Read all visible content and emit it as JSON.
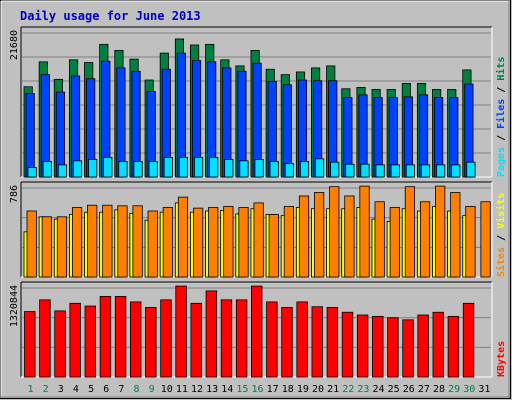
{
  "chart_data": {
    "type": "bar",
    "title": "Daily usage for June 2013",
    "categories": [
      "1",
      "2",
      "3",
      "4",
      "5",
      "6",
      "7",
      "8",
      "9",
      "10",
      "11",
      "12",
      "13",
      "14",
      "15",
      "16",
      "17",
      "18",
      "19",
      "20",
      "21",
      "22",
      "23",
      "24",
      "25",
      "26",
      "27",
      "28",
      "29",
      "30",
      "31"
    ],
    "weekend_days": [
      "1",
      "2",
      "8",
      "9",
      "15",
      "16",
      "22",
      "23",
      "29",
      "30"
    ],
    "colors": {
      "hits": "#008040",
      "files": "#0040ff",
      "pages": "#00e0ff",
      "visits": "#ffff00",
      "sites": "#ff8000",
      "kbytes": "#ff0000",
      "title": "#0000c0",
      "weekday_label": "#000000",
      "weekend_label": "#008040"
    },
    "panels": [
      {
        "id": "top",
        "axis_label": "21680",
        "ylim": [
          0,
          21680
        ],
        "legend": [
          "Pages",
          "Files",
          "Hits"
        ],
        "series": [
          {
            "name": "Hits",
            "values": [
              13400,
              17100,
              14500,
              17400,
              17000,
              19700,
              18800,
              17500,
              14400,
              18400,
              20500,
              19600,
              19700,
              17400,
              16500,
              18800,
              16000,
              15200,
              15600,
              16200,
              16500,
              13100,
              13300,
              13000,
              13000,
              13900,
              13900,
              13000,
              13000,
              15900,
              null
            ]
          },
          {
            "name": "Files",
            "values": [
              12400,
              15200,
              12600,
              15000,
              14600,
              17200,
              16200,
              15700,
              12700,
              16000,
              18400,
              17300,
              17100,
              16200,
              15700,
              16900,
              14200,
              13700,
              14400,
              14300,
              14300,
              11800,
              12200,
              11800,
              11800,
              11900,
              12200,
              11800,
              11800,
              13800,
              null
            ]
          },
          {
            "name": "Pages",
            "values": [
              1400,
              2300,
              1800,
              2400,
              2600,
              2900,
              2300,
              2300,
              2300,
              2900,
              2900,
              2900,
              2900,
              2600,
              2400,
              2600,
              2300,
              2000,
              2300,
              2700,
              2200,
              1900,
              1900,
              1800,
              1800,
              1800,
              1800,
              1800,
              1800,
              2200,
              null
            ]
          }
        ]
      },
      {
        "id": "middle",
        "axis_label": "786",
        "ylim": [
          0,
          786
        ],
        "legend": [
          "Sites",
          "Visits"
        ],
        "series": [
          {
            "name": "Sites",
            "values": [
              570,
              520,
              520,
              600,
              620,
              620,
              615,
              615,
              570,
              600,
              690,
              595,
              600,
              610,
              600,
              640,
              540,
              610,
              700,
              730,
              780,
              700,
              785,
              650,
              600,
              780,
              650,
              785,
              730,
              610,
              650
            ]
          },
          {
            "name": "Visits",
            "values": [
              390,
              520,
              500,
              540,
              560,
              560,
              580,
              550,
              490,
              560,
              640,
              560,
              570,
              575,
              545,
              590,
              540,
              530,
              600,
              590,
              590,
              590,
              600,
              500,
              480,
              590,
              570,
              610,
              570,
              530,
              null
            ]
          }
        ]
      },
      {
        "id": "bottom",
        "axis_label": "1320844",
        "ylim": [
          0,
          1320844
        ],
        "legend": [
          "KBytes"
        ],
        "series": [
          {
            "name": "KBytes",
            "values": [
              950000,
              1120000,
              960000,
              1070000,
              1030000,
              1170000,
              1170000,
              1090000,
              1010000,
              1120000,
              1320000,
              1070000,
              1250000,
              1120000,
              1120000,
              1320000,
              1090000,
              1010000,
              1090000,
              1020000,
              1010000,
              940000,
              900000,
              880000,
              860000,
              830000,
              900000,
              940000,
              880000,
              1070000,
              null
            ]
          }
        ]
      }
    ]
  }
}
